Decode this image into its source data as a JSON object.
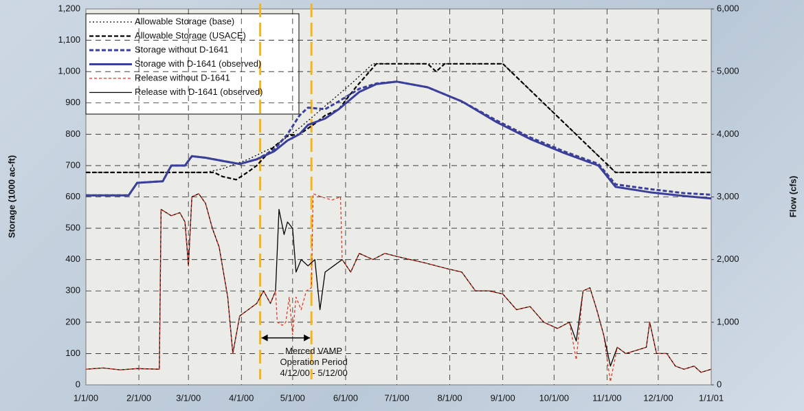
{
  "chart_data": {
    "type": "line",
    "ylabel": "Storage (1000 ac-ft)",
    "y2label": "Flow (cfs)",
    "xlim": [
      0,
      366
    ],
    "xticks": [
      {
        "value": 0,
        "label": "1/1/00"
      },
      {
        "value": 31,
        "label": "2/1/00"
      },
      {
        "value": 60,
        "label": "3/1/00"
      },
      {
        "value": 91,
        "label": "4/1/00"
      },
      {
        "value": 121,
        "label": "5/1/00"
      },
      {
        "value": 152,
        "label": "6/1/00"
      },
      {
        "value": 182,
        "label": "7/1/00"
      },
      {
        "value": 213,
        "label": "8/1/00"
      },
      {
        "value": 244,
        "label": "9/1/00"
      },
      {
        "value": 274,
        "label": "10/1/00"
      },
      {
        "value": 305,
        "label": "11/1/00"
      },
      {
        "value": 335,
        "label": "12/1/00"
      },
      {
        "value": 366,
        "label": "1/1/01"
      }
    ],
    "ylim": [
      0,
      1200
    ],
    "yticks": [
      0,
      100,
      200,
      300,
      400,
      500,
      600,
      700,
      800,
      900,
      {
        "value": 1000,
        "label": "1,000"
      },
      {
        "value": 1100,
        "label": "1,100"
      },
      {
        "value": 1200,
        "label": "1,200"
      }
    ],
    "y2lim": [
      0,
      6000
    ],
    "y2ticks": [
      0,
      {
        "value": 1000,
        "label": "1,000"
      },
      {
        "value": 2000,
        "label": "2,000"
      },
      {
        "value": 3000,
        "label": "3,000"
      },
      {
        "value": 4000,
        "label": "4,000"
      },
      {
        "value": 5000,
        "label": "5,000"
      },
      {
        "value": 6000,
        "label": "6,000"
      }
    ],
    "grid": true,
    "legend": "upper left",
    "vlines": [
      102,
      132
    ],
    "vline_color": "#f5b51d",
    "annotation": [
      "Merced VAMP",
      "Operation Period",
      "4/12/00 - 5/12/00"
    ],
    "series": [
      {
        "name": "Allowable Storage (base)",
        "color": "#000000",
        "style": "dotted",
        "width": 1.3,
        "x": [
          0,
          70,
          80,
          95,
          110,
          125,
          140,
          155,
          168,
          244,
          310,
          366
        ],
        "values": [
          678,
          678,
          690,
          720,
          760,
          820,
          890,
          960,
          1025,
          1025,
          678,
          678
        ]
      },
      {
        "name": "Allowable Storage (USACE)",
        "color": "#000000",
        "style": "dashed",
        "width": 2.2,
        "x": [
          0,
          75,
          80,
          88,
          95,
          100,
          110,
          118,
          125,
          133,
          140,
          148,
          158,
          170,
          200,
          205,
          210,
          244,
          310,
          366
        ],
        "values": [
          678,
          678,
          665,
          655,
          680,
          700,
          760,
          795,
          800,
          830,
          860,
          880,
          950,
          1025,
          1025,
          1000,
          1025,
          1025,
          678,
          678
        ]
      },
      {
        "name": "Storage without D-1641",
        "color": "#3a3f99",
        "style": "dashed",
        "width": 3,
        "x": [
          0,
          25,
          30,
          45,
          50,
          58,
          62,
          70,
          80,
          90,
          100,
          110,
          118,
          125,
          130,
          140,
          148,
          160,
          170,
          182,
          200,
          220,
          240,
          260,
          280,
          300,
          310,
          330,
          350,
          366
        ],
        "values": [
          605,
          605,
          645,
          650,
          700,
          700,
          730,
          725,
          715,
          705,
          720,
          750,
          800,
          860,
          885,
          880,
          905,
          945,
          962,
          968,
          950,
          905,
          845,
          790,
          745,
          705,
          640,
          625,
          612,
          607
        ]
      },
      {
        "name": "Storage with D-1641 (observed)",
        "color": "#3a3f99",
        "style": "solid",
        "width": 3,
        "x": [
          0,
          25,
          30,
          45,
          50,
          58,
          62,
          70,
          80,
          90,
          100,
          110,
          118,
          125,
          130,
          140,
          148,
          160,
          170,
          182,
          200,
          220,
          240,
          260,
          280,
          300,
          310,
          330,
          350,
          366
        ],
        "values": [
          605,
          605,
          645,
          650,
          700,
          700,
          730,
          725,
          715,
          705,
          720,
          745,
          780,
          800,
          830,
          850,
          880,
          935,
          960,
          968,
          950,
          905,
          840,
          785,
          740,
          700,
          632,
          615,
          603,
          595
        ]
      },
      {
        "name": "Release without D-1641",
        "color": "#e03020",
        "style": "dashed-thin",
        "width": 1.2,
        "axis": "y2",
        "x": [
          0,
          10,
          20,
          30,
          43,
          44,
          50,
          55,
          58,
          60,
          62,
          66,
          70,
          74,
          78,
          83,
          86,
          90,
          95,
          100,
          104,
          108,
          111,
          112,
          115,
          117,
          119,
          121,
          123,
          126,
          129,
          132,
          133,
          138,
          144,
          149,
          150,
          155,
          160,
          168,
          175,
          182,
          190,
          198,
          205,
          212,
          220,
          228,
          236,
          244,
          252,
          260,
          268,
          276,
          283,
          287,
          291,
          295,
          299,
          303,
          307,
          311,
          316,
          322,
          328,
          330,
          334,
          340,
          345,
          350,
          356,
          360,
          366
        ],
        "values": [
          250,
          270,
          240,
          260,
          250,
          2800,
          2700,
          2750,
          2600,
          1900,
          3000,
          3050,
          2900,
          2500,
          2200,
          1400,
          500,
          1100,
          1200,
          1300,
          1500,
          1300,
          1500,
          1000,
          950,
          1000,
          1400,
          800,
          1400,
          1200,
          1500,
          1550,
          3050,
          3000,
          2950,
          3000,
          2000,
          1800,
          2100,
          2000,
          2100,
          2050,
          2000,
          1950,
          1900,
          1850,
          1800,
          1500,
          1500,
          1450,
          1200,
          1250,
          1000,
          900,
          1000,
          400,
          1500,
          1550,
          1200,
          800,
          50,
          600,
          500,
          550,
          600,
          1000,
          500,
          500,
          300,
          250,
          300,
          200,
          250
        ]
      },
      {
        "name": "Release with D-1641 (observed)",
        "color": "#000000",
        "style": "solid",
        "width": 1.3,
        "axis": "y2",
        "x": [
          0,
          10,
          20,
          30,
          43,
          44,
          50,
          55,
          58,
          60,
          62,
          66,
          70,
          74,
          78,
          83,
          86,
          90,
          95,
          100,
          104,
          108,
          111,
          113,
          116,
          118,
          121,
          123,
          126,
          130,
          134,
          137,
          140,
          145,
          150,
          155,
          160,
          168,
          175,
          182,
          190,
          198,
          205,
          212,
          220,
          228,
          236,
          244,
          252,
          260,
          268,
          276,
          283,
          287,
          291,
          295,
          299,
          303,
          307,
          311,
          316,
          322,
          328,
          330,
          334,
          340,
          345,
          350,
          356,
          360,
          366
        ],
        "values": [
          250,
          270,
          240,
          260,
          250,
          2800,
          2700,
          2750,
          2600,
          1900,
          3000,
          3050,
          2900,
          2500,
          2200,
          1400,
          500,
          1100,
          1200,
          1300,
          1500,
          1300,
          1500,
          2800,
          2400,
          2600,
          2500,
          1800,
          2000,
          1900,
          2000,
          1200,
          1800,
          1900,
          2000,
          1800,
          2100,
          2000,
          2100,
          2050,
          2000,
          1950,
          1900,
          1850,
          1800,
          1500,
          1500,
          1450,
          1200,
          1250,
          1000,
          900,
          1000,
          700,
          1500,
          1550,
          1200,
          800,
          300,
          600,
          500,
          550,
          600,
          1000,
          500,
          500,
          300,
          250,
          300,
          200,
          250
        ]
      }
    ]
  }
}
